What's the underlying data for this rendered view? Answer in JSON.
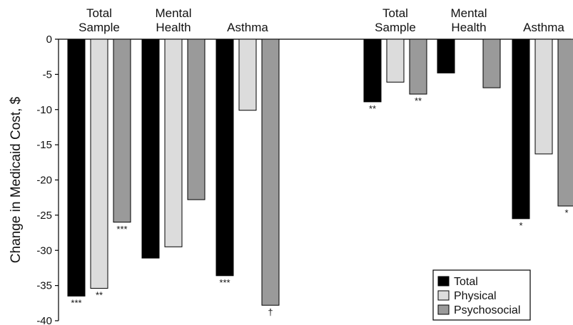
{
  "chart_data": {
    "type": "bar",
    "ylabel": "Change in Medicaid Cost, $",
    "ylim": [
      -40,
      0
    ],
    "yticks": [
      0,
      -5,
      -10,
      -15,
      -20,
      -25,
      -30,
      -35,
      -40
    ],
    "series": [
      {
        "name": "Total",
        "color": "#000000"
      },
      {
        "name": "Physical",
        "color": "#dcdcdc"
      },
      {
        "name": "Psychosocial",
        "color": "#9a9a9a"
      }
    ],
    "groups": [
      {
        "label": [
          "Total",
          "Sample"
        ],
        "values": [
          -36.5,
          -35.4,
          -26.0
        ],
        "sig": [
          "***",
          "**",
          "***"
        ]
      },
      {
        "label": [
          "Mental",
          "Health"
        ],
        "values": [
          -31.1,
          -29.5,
          -22.8
        ],
        "sig": [
          "",
          "",
          ""
        ]
      },
      {
        "label": [
          "Asthma"
        ],
        "values": [
          -33.6,
          -10.1,
          -37.8
        ],
        "sig": [
          "***",
          "",
          "†"
        ]
      },
      {
        "label": [
          "Total",
          "Sample"
        ],
        "values": [
          -8.9,
          -6.1,
          -7.8
        ],
        "sig": [
          "**",
          "",
          "**"
        ]
      },
      {
        "label": [
          "Mental",
          "Health"
        ],
        "values": [
          -4.8,
          null,
          -6.9
        ],
        "sig": [
          "",
          "",
          ""
        ]
      },
      {
        "label": [
          "Asthma"
        ],
        "values": [
          -25.5,
          -16.3,
          -23.7
        ],
        "sig": [
          "*",
          "",
          "*"
        ]
      }
    ],
    "legend": {
      "position": "bottom-right"
    },
    "grid": false
  }
}
